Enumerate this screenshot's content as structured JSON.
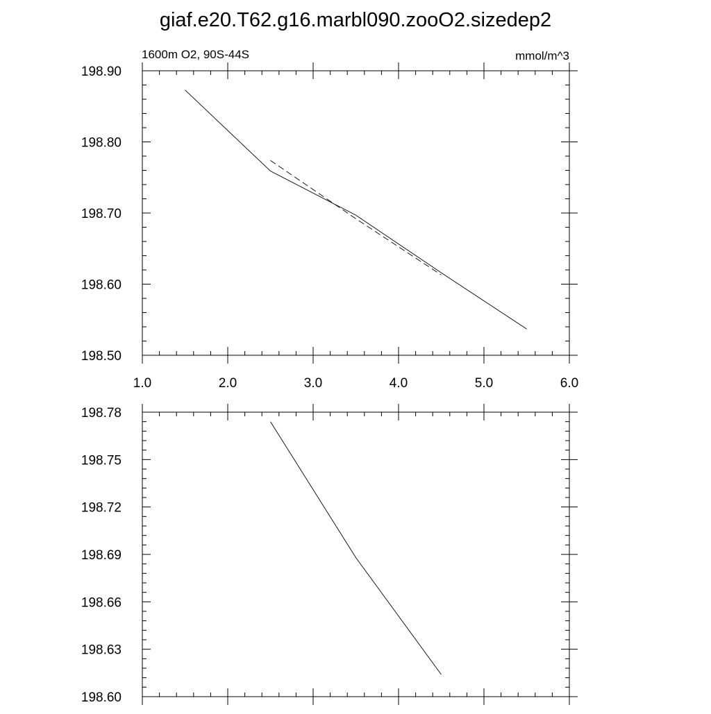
{
  "figure_title": "giaf.e20.T62.g16.marbl090.zooO2.sizedep2",
  "chart_data": [
    {
      "type": "line",
      "subtitle_left": "1600m O2, 90S-44S",
      "subtitle_right": "mmol/m^3",
      "xlim": [
        1.0,
        6.0
      ],
      "ylim": [
        198.5,
        198.9
      ],
      "x_ticks": [
        1.0,
        2.0,
        3.0,
        4.0,
        5.0,
        6.0
      ],
      "x_tick_labels": [
        "1.0",
        "2.0",
        "3.0",
        "4.0",
        "5.0",
        "6.0"
      ],
      "y_ticks": [
        198.5,
        198.6,
        198.7,
        198.8,
        198.9
      ],
      "y_tick_labels": [
        "198.50",
        "198.60",
        "198.70",
        "198.80",
        "198.90"
      ],
      "grid": false,
      "series": [
        {
          "style": "solid",
          "color": "#000000",
          "x": [
            1.5,
            2.5,
            3.5,
            4.5,
            5.5
          ],
          "y": [
            198.873,
            198.759,
            198.697,
            198.616,
            198.537
          ]
        },
        {
          "style": "dashed",
          "color": "#000000",
          "x": [
            2.5,
            3.5,
            4.5
          ],
          "y": [
            198.774,
            198.692,
            198.613
          ]
        }
      ]
    },
    {
      "type": "line",
      "xlim": [
        1.0,
        6.0
      ],
      "ylim": [
        198.6,
        198.78
      ],
      "x_ticks": [
        1.0,
        2.0,
        3.0,
        4.0,
        5.0,
        6.0
      ],
      "x_tick_labels": [],
      "y_ticks": [
        198.6,
        198.63,
        198.66,
        198.69,
        198.72,
        198.75,
        198.78
      ],
      "y_tick_labels": [
        "198.60",
        "198.63",
        "198.66",
        "198.69",
        "198.72",
        "198.75",
        "198.78"
      ],
      "grid": false,
      "series": [
        {
          "style": "solid",
          "color": "#000000",
          "x": [
            2.5,
            3.5,
            4.5
          ],
          "y": [
            198.774,
            198.688,
            198.614
          ]
        }
      ]
    }
  ]
}
